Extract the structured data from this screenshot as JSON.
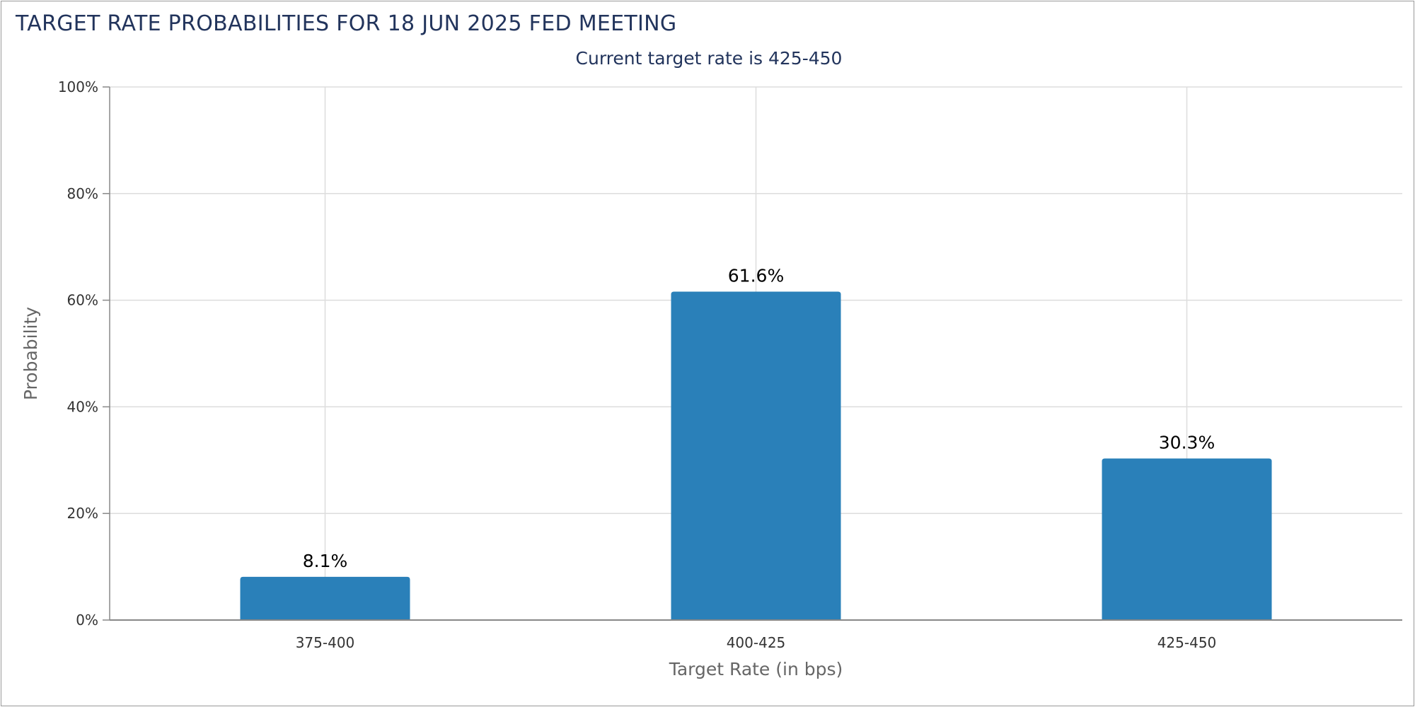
{
  "chart_data": {
    "type": "bar",
    "title": "TARGET RATE PROBABILITIES FOR 18 JUN 2025 FED MEETING",
    "subtitle": "Current target rate is 425-450",
    "xlabel": "Target Rate (in bps)",
    "ylabel": "Probability",
    "categories": [
      "375-400",
      "400-425",
      "425-450"
    ],
    "values": [
      8.1,
      61.6,
      30.3
    ],
    "data_labels": [
      "8.1%",
      "61.6%",
      "30.3%"
    ],
    "ylim": [
      0,
      100
    ],
    "yticks": [
      0,
      20,
      40,
      60,
      80,
      100
    ],
    "ytick_labels": [
      "0%",
      "20%",
      "40%",
      "60%",
      "80%",
      "100%"
    ],
    "grid": true,
    "legend": "none",
    "colors": {
      "bar": "#2a80b9",
      "title": "#22345c",
      "grid": "#dddddd",
      "axis": "#888888"
    }
  }
}
